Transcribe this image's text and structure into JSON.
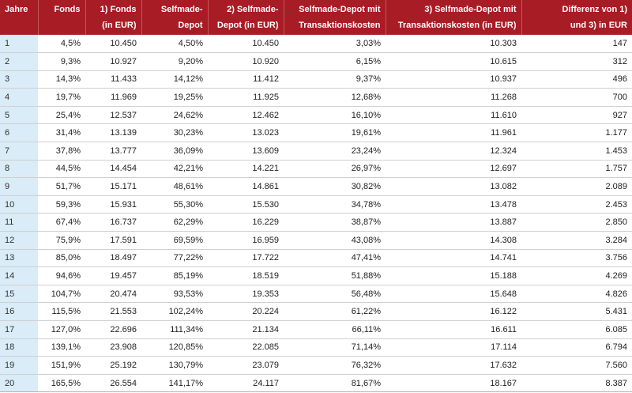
{
  "headers": [
    [
      "Jahre"
    ],
    [
      "Fonds"
    ],
    [
      "1) Fonds",
      "(in EUR)"
    ],
    [
      "Selfmade-",
      "Depot"
    ],
    [
      "2) Selfmade-",
      "Depot (in EUR)"
    ],
    [
      "Selfmade-Depot mit",
      "Transaktionskosten"
    ],
    [
      "3) Selfmade-Depot mit",
      "Transaktionskosten (in EUR)"
    ],
    [
      "Differenz von 1)",
      "und 3) in EUR"
    ]
  ],
  "rows": [
    [
      "1",
      "4,5%",
      "10.450",
      "4,50%",
      "10.450",
      "3,03%",
      "10.303",
      "147"
    ],
    [
      "2",
      "9,3%",
      "10.927",
      "9,20%",
      "10.920",
      "6,15%",
      "10.615",
      "312"
    ],
    [
      "3",
      "14,3%",
      "11.433",
      "14,12%",
      "11.412",
      "9,37%",
      "10.937",
      "496"
    ],
    [
      "4",
      "19,7%",
      "11.969",
      "19,25%",
      "11.925",
      "12,68%",
      "11.268",
      "700"
    ],
    [
      "5",
      "25,4%",
      "12.537",
      "24,62%",
      "12.462",
      "16,10%",
      "11.610",
      "927"
    ],
    [
      "6",
      "31,4%",
      "13.139",
      "30,23%",
      "13.023",
      "19,61%",
      "11.961",
      "1.177"
    ],
    [
      "7",
      "37,8%",
      "13.777",
      "36,09%",
      "13.609",
      "23,24%",
      "12.324",
      "1.453"
    ],
    [
      "8",
      "44,5%",
      "14.454",
      "42,21%",
      "14.221",
      "26,97%",
      "12.697",
      "1.757"
    ],
    [
      "9",
      "51,7%",
      "15.171",
      "48,61%",
      "14.861",
      "30,82%",
      "13.082",
      "2.089"
    ],
    [
      "10",
      "59,3%",
      "15.931",
      "55,30%",
      "15.530",
      "34,78%",
      "13.478",
      "2.453"
    ],
    [
      "11",
      "67,4%",
      "16.737",
      "62,29%",
      "16.229",
      "38,87%",
      "13.887",
      "2.850"
    ],
    [
      "12",
      "75,9%",
      "17.591",
      "69,59%",
      "16.959",
      "43,08%",
      "14.308",
      "3.284"
    ],
    [
      "13",
      "85,0%",
      "18.497",
      "77,22%",
      "17.722",
      "47,41%",
      "14.741",
      "3.756"
    ],
    [
      "14",
      "94,6%",
      "19.457",
      "85,19%",
      "18.519",
      "51,88%",
      "15.188",
      "4.269"
    ],
    [
      "15",
      "104,7%",
      "20.474",
      "93,53%",
      "19.353",
      "56,48%",
      "15.648",
      "4.826"
    ],
    [
      "16",
      "115,5%",
      "21.553",
      "102,24%",
      "20.224",
      "61,22%",
      "16.122",
      "5.431"
    ],
    [
      "17",
      "127,0%",
      "22.696",
      "111,34%",
      "21.134",
      "66,11%",
      "16.611",
      "6.085"
    ],
    [
      "18",
      "139,1%",
      "23.908",
      "120,85%",
      "22.085",
      "71,14%",
      "17.114",
      "6.794"
    ],
    [
      "19",
      "151,9%",
      "25.192",
      "130,79%",
      "23.079",
      "76,32%",
      "17.632",
      "7.560"
    ],
    [
      "20",
      "165,5%",
      "26.554",
      "141,17%",
      "24.117",
      "81,67%",
      "18.167",
      "8.387"
    ]
  ],
  "colors": {
    "header_bg": "#a81c26",
    "year_bg": "#d9ecf7"
  }
}
